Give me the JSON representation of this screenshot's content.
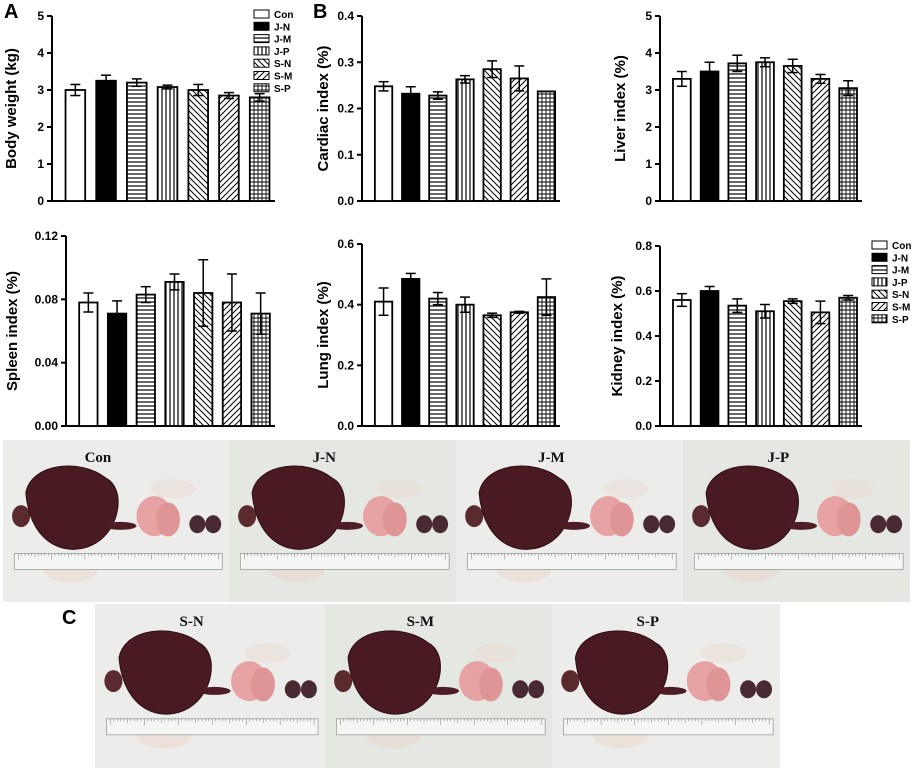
{
  "panel_labels": {
    "a": "A",
    "b": "B",
    "c": "C"
  },
  "groups": [
    "Con",
    "J-N",
    "J-M",
    "J-P",
    "S-N",
    "S-M",
    "S-P"
  ],
  "legend_styles": [
    "open",
    "solid",
    "hlines",
    "vlines",
    "diag-down",
    "diag-up",
    "grid"
  ],
  "chart_data": [
    {
      "type": "bar",
      "ylabel": "Body weight (kg)",
      "ylim": [
        0,
        5
      ],
      "yticks": [
        "0",
        "1",
        "2",
        "3",
        "4",
        "5"
      ],
      "categories": [
        "Con",
        "J-N",
        "J-M",
        "J-P",
        "S-N",
        "S-M",
        "S-P"
      ],
      "values": [
        3.0,
        3.25,
        3.2,
        3.08,
        3.0,
        2.85,
        2.8
      ],
      "errors": [
        0.15,
        0.15,
        0.1,
        0.05,
        0.15,
        0.08,
        0.1
      ],
      "legend": "top-right"
    },
    {
      "type": "bar",
      "ylabel": "Cardiac index (%)",
      "ylim": [
        0,
        0.4
      ],
      "yticks": [
        "0.0",
        "0.1",
        "0.2",
        "0.3",
        "0.4"
      ],
      "categories": [
        "Con",
        "J-N",
        "J-M",
        "J-P",
        "S-N",
        "S-M",
        "S-P"
      ],
      "values": [
        0.248,
        0.232,
        0.228,
        0.263,
        0.285,
        0.265,
        0.237
      ],
      "errors": [
        0.01,
        0.015,
        0.008,
        0.008,
        0.018,
        0.027,
        0.0
      ],
      "legend": "none"
    },
    {
      "type": "bar",
      "ylabel": "Liver index (%)",
      "ylim": [
        0,
        5
      ],
      "yticks": [
        "0",
        "1",
        "2",
        "3",
        "4",
        "5"
      ],
      "categories": [
        "Con",
        "J-N",
        "J-M",
        "J-P",
        "S-N",
        "S-M",
        "S-P"
      ],
      "values": [
        3.3,
        3.5,
        3.72,
        3.75,
        3.65,
        3.3,
        3.05
      ],
      "errors": [
        0.2,
        0.25,
        0.22,
        0.12,
        0.18,
        0.12,
        0.2
      ],
      "legend": "none"
    },
    {
      "type": "bar",
      "ylabel": "Spleen index (%)",
      "ylim": [
        0,
        0.12
      ],
      "yticks": [
        "0.00",
        "0.04",
        "0.08",
        "0.12"
      ],
      "categories": [
        "Con",
        "J-N",
        "J-M",
        "J-P",
        "S-N",
        "S-M",
        "S-P"
      ],
      "values": [
        0.078,
        0.071,
        0.083,
        0.091,
        0.084,
        0.078,
        0.071
      ],
      "errors": [
        0.006,
        0.008,
        0.005,
        0.005,
        0.021,
        0.018,
        0.013
      ],
      "legend": "none"
    },
    {
      "type": "bar",
      "ylabel": "Lung index (%)",
      "ylim": [
        0,
        0.6
      ],
      "yticks": [
        "0.0",
        "0.2",
        "0.4",
        "0.6"
      ],
      "categories": [
        "Con",
        "J-N",
        "J-M",
        "J-P",
        "S-N",
        "S-M",
        "S-P"
      ],
      "values": [
        0.41,
        0.485,
        0.42,
        0.4,
        0.365,
        0.375,
        0.425
      ],
      "errors": [
        0.045,
        0.018,
        0.02,
        0.025,
        0.007,
        0.003,
        0.06
      ],
      "legend": "none"
    },
    {
      "type": "bar",
      "ylabel": "Kidney index (%)",
      "ylim": [
        0,
        0.8
      ],
      "yticks": [
        "0.0",
        "0.2",
        "0.4",
        "0.6",
        "0.8"
      ],
      "categories": [
        "Con",
        "J-N",
        "J-M",
        "J-P",
        "S-N",
        "S-M",
        "S-P"
      ],
      "values": [
        0.56,
        0.6,
        0.535,
        0.51,
        0.555,
        0.505,
        0.57
      ],
      "errors": [
        0.028,
        0.02,
        0.03,
        0.03,
        0.01,
        0.05,
        0.01
      ],
      "legend": "top-right"
    }
  ],
  "photos": {
    "row1": [
      "Con",
      "J-N",
      "J-M",
      "J-P"
    ],
    "row2": [
      "S-N",
      "S-M",
      "S-P"
    ]
  }
}
